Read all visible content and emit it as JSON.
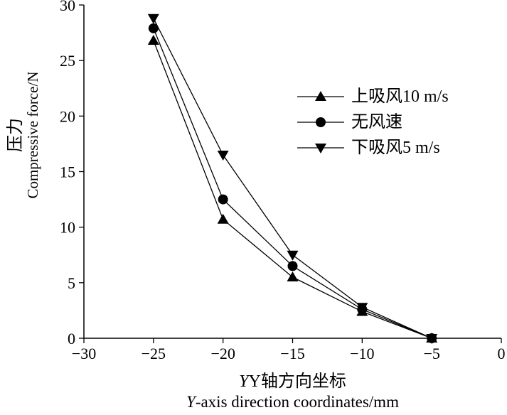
{
  "chart_data": {
    "type": "line",
    "title": "",
    "xlabel": "Y轴方向坐标",
    "xlabel_en": "Y-axis direction coordinates/mm",
    "ylabel": "压力",
    "ylabel_en": "Compressive force/N",
    "xlim": [
      -30,
      0
    ],
    "ylim": [
      0,
      30
    ],
    "xticks": [
      "−30",
      "−25",
      "−20",
      "−15",
      "−10",
      "−5",
      "0"
    ],
    "yticks": [
      "0",
      "5",
      "10",
      "15",
      "20",
      "25",
      "30"
    ],
    "grid": false,
    "legend_position": "upper-right",
    "x": [
      -25,
      -20,
      -15,
      -10,
      -5
    ],
    "series": [
      {
        "name": "上吸风10 m/s",
        "marker": "triangle-up",
        "values": [
          26.8,
          10.7,
          5.5,
          2.4,
          0
        ]
      },
      {
        "name": "无风速",
        "marker": "circle",
        "values": [
          27.9,
          12.5,
          6.5,
          2.6,
          0
        ]
      },
      {
        "name": "下吸风5 m/s",
        "marker": "triangle-down",
        "values": [
          28.8,
          16.5,
          7.5,
          2.8,
          0
        ]
      }
    ]
  }
}
